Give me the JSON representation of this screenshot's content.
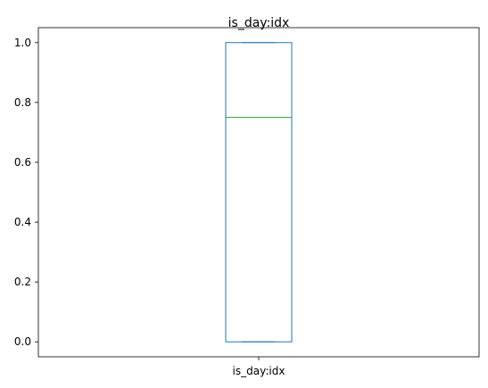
{
  "chart_data": {
    "type": "box",
    "title": "is_day:idx",
    "categories": [
      "is_day:idx"
    ],
    "boxes": [
      {
        "name": "is_day:idx",
        "min": 0.0,
        "q1": 0.0,
        "median": 0.75,
        "q3": 1.0,
        "max": 1.0
      }
    ],
    "y_ticks": [
      "0.0",
      "0.2",
      "0.4",
      "0.6",
      "0.8",
      "1.0"
    ],
    "ylim": [
      -0.05,
      1.05
    ],
    "grid": false,
    "colors": {
      "box": "#1f77b4",
      "median": "#2ca02c",
      "axes": "#000000"
    }
  }
}
